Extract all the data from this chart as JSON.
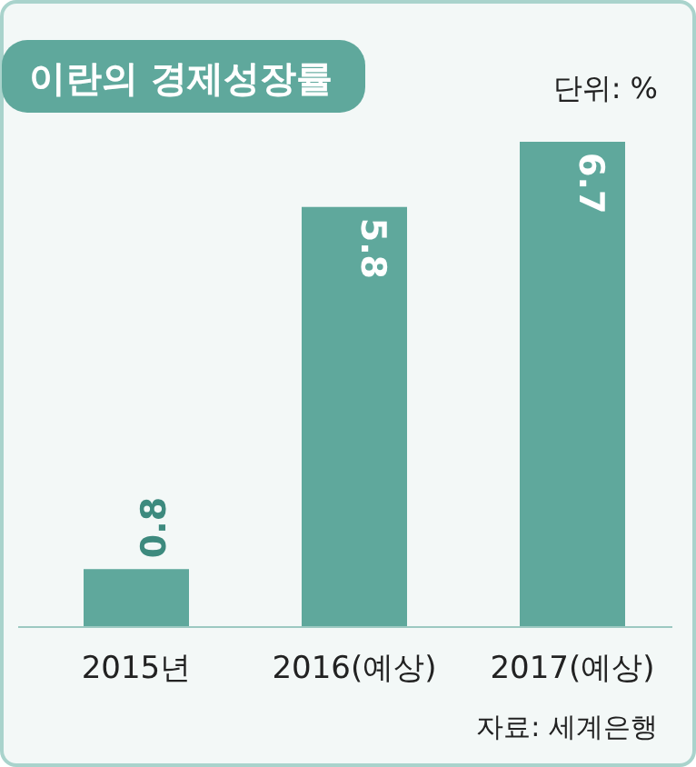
{
  "chart_data": {
    "type": "bar",
    "title": "이란의 경제성장률",
    "categories": [
      "2015년",
      "2016(예상)",
      "2017(예상)"
    ],
    "values": [
      0.8,
      5.8,
      6.7
    ],
    "color": "#5fa89c",
    "data_labels": true,
    "annotations": [
      "단위: %",
      "자료: 세계은행"
    ]
  }
}
